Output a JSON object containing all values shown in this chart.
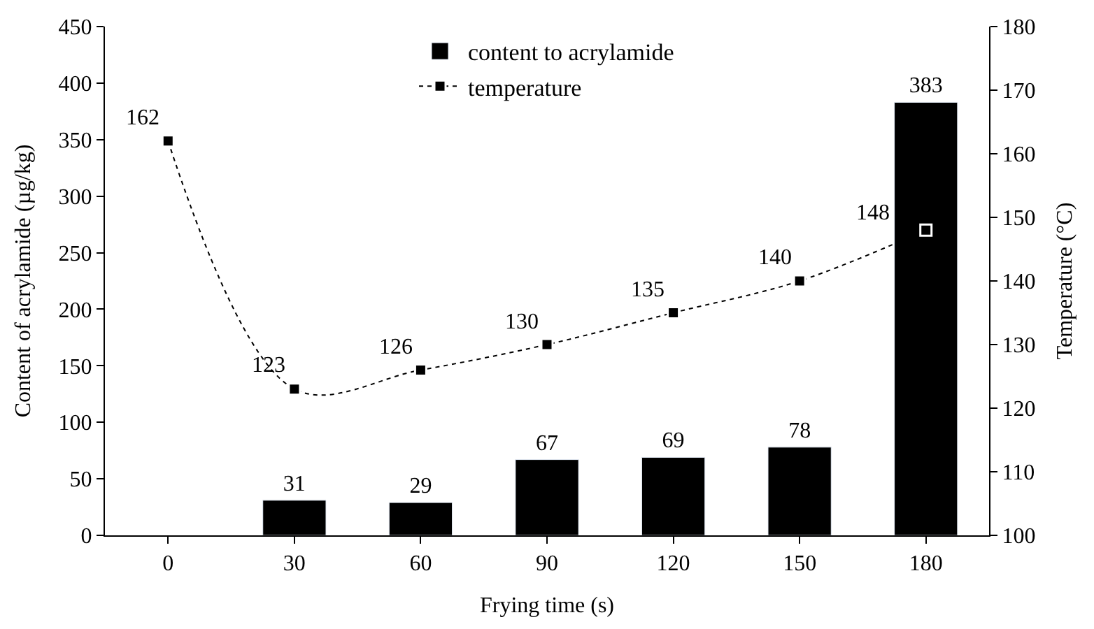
{
  "chart_data": {
    "type": "bar",
    "xlabel": "Frying time (s)",
    "ylabel": "Content of acrylamide (µg/kg)",
    "y2label": "Temperature (°C)",
    "categories": [
      "0",
      "30",
      "60",
      "90",
      "120",
      "150",
      "180"
    ],
    "series": [
      {
        "name": "content to acrylamide",
        "color": "#000000",
        "values": [
          null,
          31,
          29,
          67,
          69,
          78,
          383
        ]
      },
      {
        "name": "temperature",
        "type": "line",
        "axis": "y2",
        "color": "#000000",
        "marker": "square",
        "line_style": "dotted",
        "values": [
          162,
          123,
          126,
          130,
          135,
          140,
          148
        ]
      }
    ],
    "ylim": [
      0,
      450
    ],
    "yticks": [
      0,
      50,
      100,
      150,
      200,
      250,
      300,
      350,
      400,
      450
    ],
    "y2lim": [
      100,
      180
    ],
    "y2ticks": [
      100,
      110,
      120,
      130,
      140,
      150,
      160,
      170,
      180
    ],
    "data_labels": true,
    "legend": "top"
  }
}
